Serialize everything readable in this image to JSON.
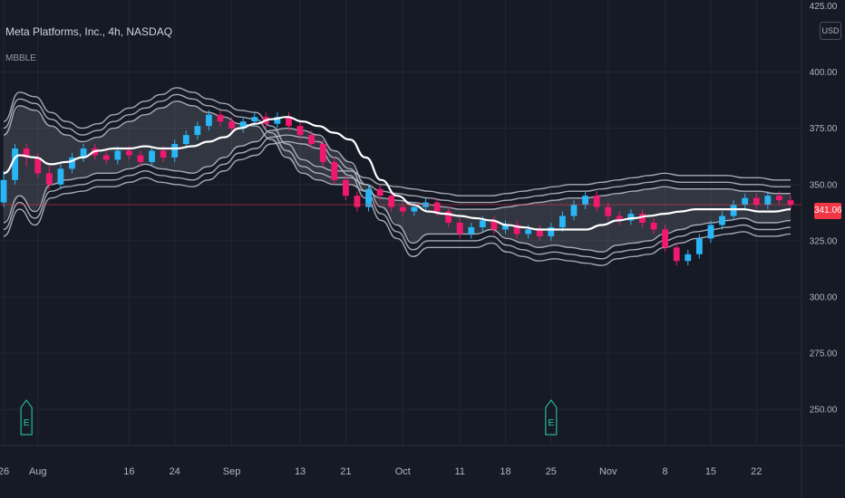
{
  "header": {
    "title": "Meta Platforms, Inc., 4h, NASDAQ",
    "indicator": "MBBLE"
  },
  "axis": {
    "currency": "USD",
    "last_price": "341.06"
  },
  "colors": {
    "background": "#161a25",
    "bull": "#29b6f6",
    "bear": "#f0196e",
    "mid": "#ffffff",
    "band": "#c0c3cc",
    "grid": "#232733",
    "price_line": "#f23645",
    "earnings": "#2bd4b4"
  },
  "chart_data": {
    "type": "line",
    "title": "Meta Platforms, Inc., 4h, NASDAQ",
    "indicator": "MBBLE",
    "y_ticks": [
      "400.00",
      "375.00",
      "350.00",
      "325.00",
      "300.00",
      "275.00",
      "250.00"
    ],
    "y_tick_values": [
      400,
      375,
      350,
      325,
      300,
      275,
      250
    ],
    "y_top_partial": "425.00",
    "ylim": [
      234,
      432
    ],
    "x_ticks": [
      {
        "label": "26",
        "i": 0
      },
      {
        "label": "Aug",
        "i": 3
      },
      {
        "label": "16",
        "i": 11
      },
      {
        "label": "24",
        "i": 15
      },
      {
        "label": "Sep",
        "i": 20
      },
      {
        "label": "13",
        "i": 26
      },
      {
        "label": "21",
        "i": 30
      },
      {
        "label": "Oct",
        "i": 35
      },
      {
        "label": "11",
        "i": 40
      },
      {
        "label": "18",
        "i": 44
      },
      {
        "label": "25",
        "i": 48
      },
      {
        "label": "Nov",
        "i": 53
      },
      {
        "label": "8",
        "i": 58
      },
      {
        "label": "15",
        "i": 62
      },
      {
        "label": "22",
        "i": 66
      }
    ],
    "last_price": 341.06,
    "earnings_markers": [
      {
        "label": "E",
        "i": 2
      },
      {
        "label": "E",
        "i": 48
      }
    ],
    "series": [
      {
        "name": "MID",
        "values": [
          355,
          363,
          362,
          359,
          360,
          362,
          365,
          366,
          366,
          367,
          366,
          366,
          367,
          369,
          371,
          375,
          377,
          379,
          380,
          378,
          376,
          373,
          370,
          362,
          352,
          345,
          341,
          338,
          337,
          336,
          335,
          334,
          332,
          331,
          330,
          330,
          330,
          330,
          332,
          334,
          335,
          336,
          337,
          338,
          339,
          339,
          339,
          339,
          338,
          338,
          339
        ]
      },
      {
        "name": "UPPER1",
        "values": [
          372,
          385,
          383,
          376,
          372,
          369,
          371,
          375,
          378,
          381,
          384,
          387,
          385,
          382,
          380,
          377,
          376,
          370,
          362,
          355,
          352,
          350,
          350,
          347,
          344,
          343,
          342,
          341,
          340,
          339,
          339,
          339,
          340,
          341,
          342,
          343,
          344,
          344,
          345,
          346,
          347,
          348,
          349,
          348,
          348,
          348,
          348,
          347,
          347,
          346,
          346
        ]
      },
      {
        "name": "LOWER1",
        "values": [
          333,
          345,
          338,
          350,
          352,
          353,
          355,
          355,
          357,
          359,
          357,
          356,
          355,
          358,
          362,
          367,
          369,
          374,
          375,
          374,
          372,
          365,
          360,
          350,
          340,
          332,
          324,
          328,
          328,
          328,
          328,
          330,
          326,
          324,
          322,
          323,
          322,
          321,
          320,
          323,
          324,
          325,
          328,
          330,
          332,
          333,
          334,
          335,
          333,
          333,
          334
        ]
      }
    ],
    "candles": [
      {
        "o": 342,
        "c": 352,
        "h": 356,
        "l": 340
      },
      {
        "o": 352,
        "c": 366,
        "h": 368,
        "l": 350
      },
      {
        "o": 366,
        "c": 362,
        "h": 368,
        "l": 358
      },
      {
        "o": 362,
        "c": 355,
        "h": 364,
        "l": 353
      },
      {
        "o": 355,
        "c": 350,
        "h": 358,
        "l": 348
      },
      {
        "o": 350,
        "c": 357,
        "h": 359,
        "l": 348
      },
      {
        "o": 357,
        "c": 362,
        "h": 364,
        "l": 355
      },
      {
        "o": 362,
        "c": 366,
        "h": 368,
        "l": 360
      },
      {
        "o": 366,
        "c": 363,
        "h": 368,
        "l": 361
      },
      {
        "o": 363,
        "c": 361,
        "h": 365,
        "l": 359
      },
      {
        "o": 361,
        "c": 365,
        "h": 367,
        "l": 359
      },
      {
        "o": 365,
        "c": 363,
        "h": 367,
        "l": 361
      },
      {
        "o": 363,
        "c": 360,
        "h": 365,
        "l": 358
      },
      {
        "o": 360,
        "c": 365,
        "h": 367,
        "l": 358
      },
      {
        "o": 365,
        "c": 362,
        "h": 367,
        "l": 360
      },
      {
        "o": 362,
        "c": 368,
        "h": 370,
        "l": 360
      },
      {
        "o": 368,
        "c": 372,
        "h": 374,
        "l": 366
      },
      {
        "o": 372,
        "c": 376,
        "h": 378,
        "l": 370
      },
      {
        "o": 376,
        "c": 381,
        "h": 383,
        "l": 374
      },
      {
        "o": 381,
        "c": 378,
        "h": 383,
        "l": 376
      },
      {
        "o": 378,
        "c": 375,
        "h": 380,
        "l": 373
      },
      {
        "o": 375,
        "c": 378,
        "h": 380,
        "l": 373
      },
      {
        "o": 378,
        "c": 380,
        "h": 382,
        "l": 376
      },
      {
        "o": 380,
        "c": 377,
        "h": 382,
        "l": 375
      },
      {
        "o": 377,
        "c": 380,
        "h": 382,
        "l": 375
      },
      {
        "o": 380,
        "c": 376,
        "h": 382,
        "l": 374
      },
      {
        "o": 376,
        "c": 372,
        "h": 378,
        "l": 370
      },
      {
        "o": 372,
        "c": 368,
        "h": 374,
        "l": 366
      },
      {
        "o": 368,
        "c": 360,
        "h": 370,
        "l": 358
      },
      {
        "o": 360,
        "c": 352,
        "h": 362,
        "l": 350
      },
      {
        "o": 352,
        "c": 345,
        "h": 354,
        "l": 343
      },
      {
        "o": 345,
        "c": 340,
        "h": 347,
        "l": 338
      },
      {
        "o": 340,
        "c": 348,
        "h": 350,
        "l": 338
      },
      {
        "o": 348,
        "c": 345,
        "h": 350,
        "l": 343
      },
      {
        "o": 345,
        "c": 340,
        "h": 347,
        "l": 338
      },
      {
        "o": 340,
        "c": 338,
        "h": 342,
        "l": 336
      },
      {
        "o": 338,
        "c": 340,
        "h": 342,
        "l": 336
      },
      {
        "o": 340,
        "c": 342,
        "h": 344,
        "l": 338
      },
      {
        "o": 342,
        "c": 338,
        "h": 344,
        "l": 336
      },
      {
        "o": 338,
        "c": 333,
        "h": 340,
        "l": 331
      },
      {
        "o": 333,
        "c": 328,
        "h": 335,
        "l": 326
      },
      {
        "o": 328,
        "c": 331,
        "h": 333,
        "l": 326
      },
      {
        "o": 331,
        "c": 334,
        "h": 336,
        "l": 329
      },
      {
        "o": 334,
        "c": 330,
        "h": 336,
        "l": 328
      },
      {
        "o": 330,
        "c": 332,
        "h": 334,
        "l": 328
      },
      {
        "o": 332,
        "c": 328,
        "h": 334,
        "l": 326
      },
      {
        "o": 328,
        "c": 330,
        "h": 332,
        "l": 326
      },
      {
        "o": 330,
        "c": 327,
        "h": 332,
        "l": 325
      },
      {
        "o": 327,
        "c": 331,
        "h": 333,
        "l": 325
      },
      {
        "o": 331,
        "c": 336,
        "h": 338,
        "l": 329
      },
      {
        "o": 336,
        "c": 341,
        "h": 343,
        "l": 334
      },
      {
        "o": 341,
        "c": 345,
        "h": 347,
        "l": 339
      },
      {
        "o": 345,
        "c": 340,
        "h": 347,
        "l": 338
      },
      {
        "o": 340,
        "c": 336,
        "h": 342,
        "l": 334
      },
      {
        "o": 336,
        "c": 334,
        "h": 338,
        "l": 332
      },
      {
        "o": 334,
        "c": 337,
        "h": 339,
        "l": 332
      },
      {
        "o": 337,
        "c": 333,
        "h": 339,
        "l": 331
      },
      {
        "o": 333,
        "c": 330,
        "h": 335,
        "l": 328
      },
      {
        "o": 330,
        "c": 322,
        "h": 332,
        "l": 320
      },
      {
        "o": 322,
        "c": 316,
        "h": 324,
        "l": 314
      },
      {
        "o": 316,
        "c": 319,
        "h": 321,
        "l": 314
      },
      {
        "o": 319,
        "c": 326,
        "h": 328,
        "l": 317
      },
      {
        "o": 326,
        "c": 332,
        "h": 334,
        "l": 324
      },
      {
        "o": 332,
        "c": 336,
        "h": 338,
        "l": 330
      },
      {
        "o": 336,
        "c": 341,
        "h": 343,
        "l": 334
      },
      {
        "o": 341,
        "c": 344,
        "h": 346,
        "l": 339
      },
      {
        "o": 344,
        "c": 341,
        "h": 346,
        "l": 339
      },
      {
        "o": 341,
        "c": 345,
        "h": 347,
        "l": 339
      },
      {
        "o": 345,
        "c": 343,
        "h": 347,
        "l": 341
      },
      {
        "o": 343,
        "c": 341,
        "h": 345,
        "l": 339
      }
    ]
  }
}
